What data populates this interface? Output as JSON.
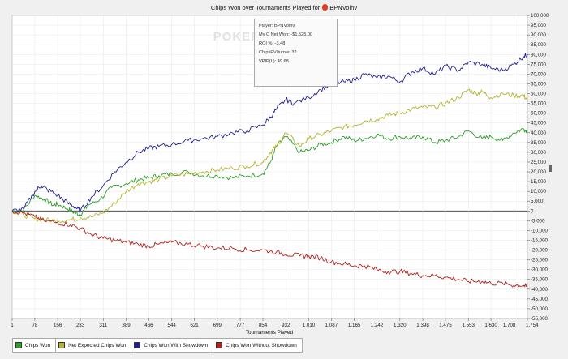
{
  "window": {
    "title": "Chips Won over Tournaments Played for",
    "player_name": "BPNVolhv",
    "watermark": "POKERTRACKER"
  },
  "tooltip": {
    "lines": [
      "Player: BPNVolhv",
      "My C Net Won: -$1,525.00",
      "ROI %: -3.48",
      "ChipsEV/turnie: 32",
      "VPIP(L): 49.68"
    ]
  },
  "legend": [
    {
      "label": "Chips Won",
      "color": "#2a9d2a"
    },
    {
      "label": "Net Expected Chips Won",
      "color": "#b3b32c"
    },
    {
      "label": "Chips Won With Showdown",
      "color": "#202090"
    },
    {
      "label": "Chips Won Without Showdown",
      "color": "#b0201c"
    }
  ],
  "chart_data": {
    "type": "line",
    "title": "Chips Won over Tournaments Played for BPNVolhv",
    "xlabel": "Tournaments Played",
    "ylabel": "",
    "xlim": [
      1,
      1754
    ],
    "ylim": [
      -55000,
      100000
    ],
    "xticks": [
      "1",
      "78",
      "156",
      "233",
      "311",
      "389",
      "466",
      "544",
      "621",
      "699",
      "777",
      "854",
      "932",
      "1,010",
      "1,087",
      "1,165",
      "1,242",
      "1,320",
      "1,398",
      "1,475",
      "1,553",
      "1,630",
      "1,708",
      "1,754"
    ],
    "yticks": [
      "100,000",
      "95,000",
      "90,000",
      "85,000",
      "80,000",
      "75,000",
      "70,000",
      "65,000",
      "60,000",
      "55,000",
      "50,000",
      "45,000",
      "40,000",
      "35,000",
      "30,000",
      "25,000",
      "20,000",
      "15,000",
      "10,000",
      "5,000",
      "0",
      "-5,000",
      "-10,000",
      "-15,000",
      "-20,000",
      "-25,000",
      "-30,000",
      "-35,000",
      "-40,000",
      "-45,000",
      "-50,000",
      "-55,000"
    ],
    "grid": true,
    "legend_position": "bottom",
    "series": [
      {
        "name": "Chips Won",
        "color": "#2a9d2a",
        "x": [
          1,
          40,
          78,
          110,
          140,
          156,
          190,
          215,
          233,
          260,
          300,
          340,
          389,
          430,
          466,
          500,
          544,
          600,
          650,
          699,
          750,
          800,
          854,
          880,
          900,
          932,
          980,
          1010,
          1050,
          1087,
          1130,
          1165,
          1200,
          1242,
          1280,
          1320,
          1360,
          1398,
          1440,
          1475,
          1520,
          1553,
          1600,
          1630,
          1670,
          1708,
          1740,
          1754
        ],
        "y": [
          0,
          500,
          8000,
          6000,
          3000,
          3500,
          1000,
          -1000,
          -2000,
          3000,
          6000,
          12000,
          14000,
          16000,
          17000,
          18000,
          19000,
          20000,
          18000,
          18000,
          17000,
          18000,
          19000,
          25000,
          33000,
          38000,
          30000,
          31000,
          34000,
          35000,
          38000,
          36000,
          37000,
          39000,
          37000,
          38000,
          37000,
          38000,
          35000,
          36000,
          38000,
          41000,
          37000,
          38000,
          36000,
          40000,
          42000,
          41000
        ]
      },
      {
        "name": "Net Expected Chips Won",
        "color": "#b3b32c",
        "x": [
          1,
          40,
          78,
          110,
          156,
          200,
          233,
          270,
          311,
          350,
          389,
          430,
          466,
          500,
          544,
          600,
          650,
          699,
          750,
          800,
          854,
          880,
          900,
          932,
          980,
          1010,
          1050,
          1087,
          1130,
          1165,
          1200,
          1242,
          1280,
          1320,
          1360,
          1398,
          1440,
          1475,
          1520,
          1553,
          1580,
          1600,
          1630,
          1670,
          1708,
          1740,
          1754
        ],
        "y": [
          0,
          -2000,
          -4000,
          -4500,
          -5000,
          -4500,
          -3500,
          -3000,
          -1000,
          4000,
          10000,
          14000,
          15000,
          16000,
          18000,
          19000,
          20000,
          21000,
          22000,
          23000,
          25000,
          30000,
          33000,
          40000,
          33000,
          37000,
          39000,
          41000,
          43000,
          44000,
          46000,
          47000,
          49000,
          50000,
          52000,
          53000,
          53000,
          55000,
          58000,
          62000,
          60000,
          61000,
          58000,
          60000,
          59000,
          59000,
          57000
        ]
      },
      {
        "name": "Chips Won With Showdown",
        "color": "#202090",
        "x": [
          1,
          40,
          78,
          100,
          120,
          156,
          190,
          215,
          233,
          270,
          311,
          350,
          389,
          430,
          466,
          500,
          544,
          600,
          650,
          699,
          750,
          800,
          854,
          880,
          900,
          932,
          960,
          1010,
          1050,
          1087,
          1130,
          1165,
          1200,
          1242,
          1280,
          1320,
          1360,
          1398,
          1440,
          1475,
          1520,
          1553,
          1600,
          1630,
          1670,
          1708,
          1740,
          1754
        ],
        "y": [
          0,
          1000,
          10000,
          13000,
          11000,
          8000,
          4000,
          2000,
          0,
          7000,
          13000,
          20000,
          25000,
          30000,
          32000,
          33000,
          34000,
          36000,
          37000,
          38000,
          40000,
          41000,
          44000,
          48000,
          52000,
          57000,
          55000,
          58000,
          62000,
          65000,
          66000,
          67000,
          70000,
          68000,
          69000,
          66000,
          71000,
          73000,
          70000,
          74000,
          72000,
          76000,
          75000,
          73000,
          72000,
          75000,
          79000,
          80000
        ]
      },
      {
        "name": "Chips Won Without Showdown",
        "color": "#b0201c",
        "x": [
          1,
          40,
          78,
          110,
          156,
          200,
          233,
          270,
          311,
          350,
          389,
          430,
          466,
          500,
          544,
          600,
          650,
          699,
          750,
          800,
          854,
          900,
          932,
          980,
          1010,
          1050,
          1087,
          1130,
          1165,
          1200,
          1242,
          1280,
          1320,
          1360,
          1398,
          1440,
          1475,
          1520,
          1553,
          1600,
          1630,
          1670,
          1708,
          1740,
          1754
        ],
        "y": [
          0,
          -1000,
          -3000,
          -5000,
          -6000,
          -7000,
          -9000,
          -12000,
          -14000,
          -15000,
          -16000,
          -17000,
          -18000,
          -17000,
          -16000,
          -17000,
          -18000,
          -19000,
          -19000,
          -20000,
          -20000,
          -21000,
          -22000,
          -23000,
          -23000,
          -24000,
          -26000,
          -27000,
          -28000,
          -28000,
          -30000,
          -31000,
          -31000,
          -32000,
          -33000,
          -33000,
          -34000,
          -35000,
          -36000,
          -36000,
          -37000,
          -37000,
          -38000,
          -38000,
          -39000
        ]
      }
    ]
  }
}
